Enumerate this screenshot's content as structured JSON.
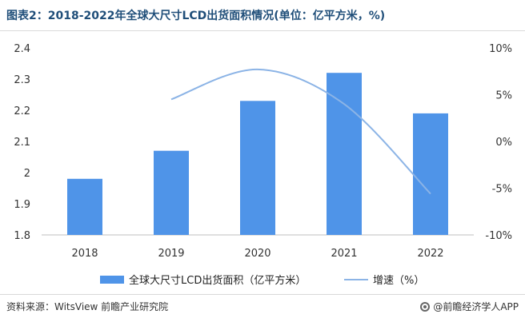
{
  "title": "图表2：2018-2022年全球大尺寸LCD出货面积情况(单位：亿平方米，%)",
  "source": "资料来源：WitsView 前瞻产业研究院",
  "brand": "@前瞻经济学人APP",
  "colors": {
    "bar": "#4f94e8",
    "line": "#8cb4e6",
    "title": "#1f4e79"
  },
  "chart_data": {
    "type": "bar",
    "categories": [
      "2018",
      "2019",
      "2020",
      "2021",
      "2022"
    ],
    "series": [
      {
        "name": "全球大尺寸LCD出货面积（亿平方米）",
        "type": "bar",
        "axis": "left",
        "values": [
          1.98,
          2.07,
          2.23,
          2.32,
          2.19
        ]
      },
      {
        "name": "增速（%）",
        "type": "line",
        "axis": "right",
        "values": [
          null,
          4.5,
          7.7,
          4.0,
          -5.6
        ]
      }
    ],
    "y_left": {
      "ylim": [
        1.8,
        2.4
      ],
      "ticks": [
        "1.8",
        "1.9",
        "2",
        "2.1",
        "2.2",
        "2.3",
        "2.4"
      ],
      "tick_values": [
        1.8,
        1.9,
        2.0,
        2.1,
        2.2,
        2.3,
        2.4
      ]
    },
    "y_right": {
      "ylim": [
        -10,
        10
      ],
      "ticks": [
        "-10%",
        "-5%",
        "0%",
        "5%",
        "10%"
      ],
      "tick_values": [
        -10,
        -5,
        0,
        5,
        10
      ]
    },
    "grid": false,
    "legend_position": "bottom"
  }
}
